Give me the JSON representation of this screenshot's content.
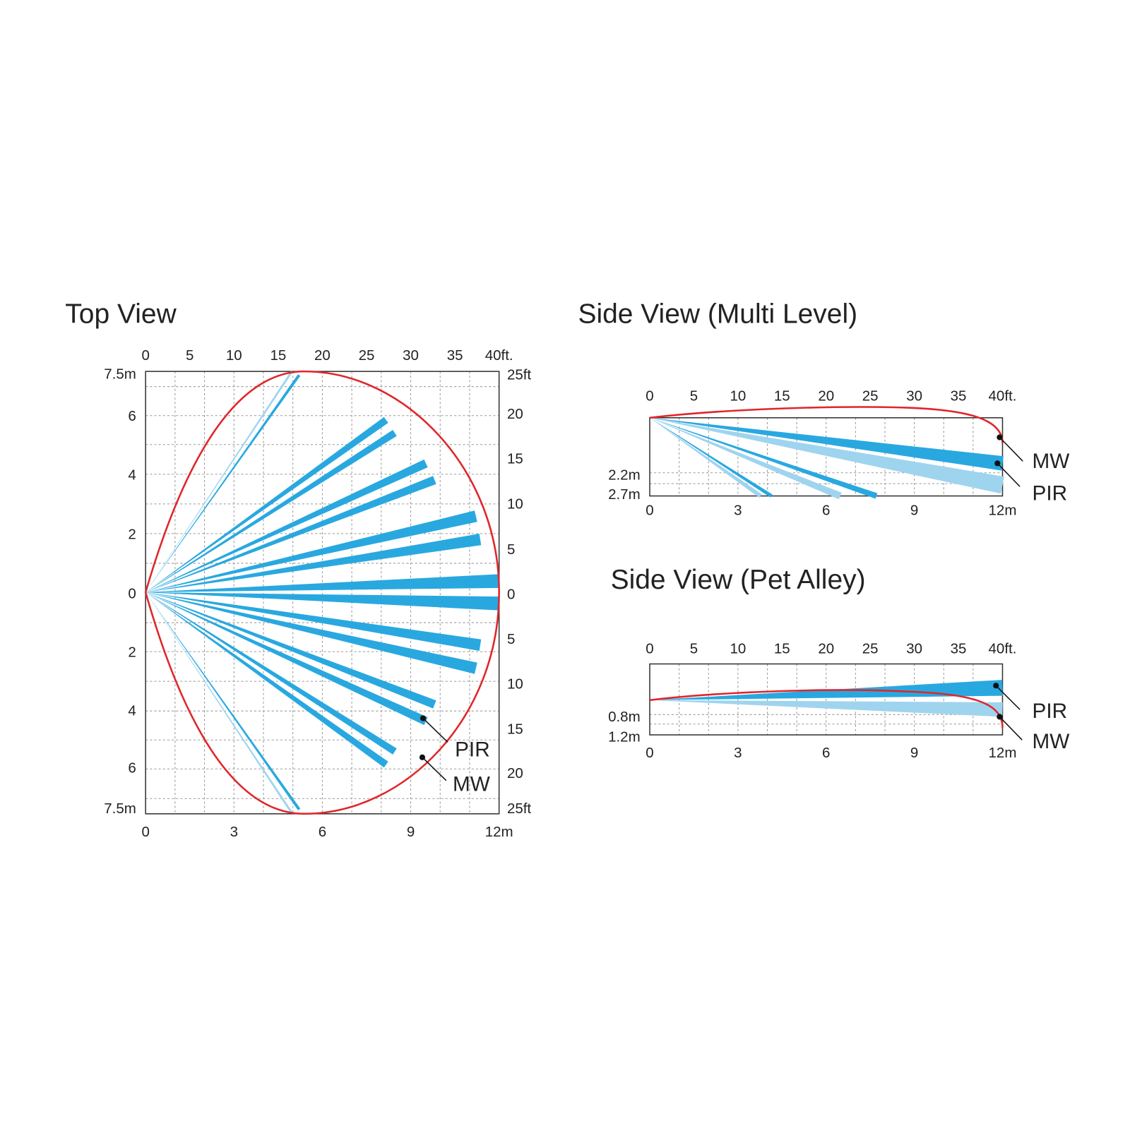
{
  "top_view": {
    "title": "Top View",
    "top_ticks": [
      "0",
      "5",
      "10",
      "15",
      "20",
      "25",
      "30",
      "35",
      "40ft."
    ],
    "bottom_ticks": [
      "0",
      "3",
      "6",
      "9",
      "12m"
    ],
    "left_ticks": [
      "7.5m",
      "6",
      "4",
      "2",
      "0",
      "2",
      "4",
      "6",
      "7.5m"
    ],
    "right_ticks": [
      "25ft",
      "20",
      "15",
      "10",
      "5",
      "0",
      "5",
      "10",
      "15",
      "20",
      "25ft"
    ],
    "labels": {
      "pir": "PIR",
      "mw": "MW"
    }
  },
  "side_multi": {
    "title": "Side View (Multi Level)",
    "top_ticks": [
      "0",
      "5",
      "10",
      "15",
      "20",
      "25",
      "30",
      "35",
      "40ft."
    ],
    "bottom_ticks": [
      "0",
      "3",
      "6",
      "9",
      "12m"
    ],
    "left_ticks": [
      "2.2m",
      "2.7m"
    ],
    "labels": {
      "mw": "MW",
      "pir": "PIR"
    }
  },
  "side_pet": {
    "title": "Side View (Pet Alley)",
    "top_ticks": [
      "0",
      "5",
      "10",
      "15",
      "20",
      "25",
      "30",
      "35",
      "40ft."
    ],
    "bottom_ticks": [
      "0",
      "3",
      "6",
      "9",
      "12m"
    ],
    "left_ticks": [
      "0.8m",
      "1.2m"
    ],
    "labels": {
      "pir": "PIR",
      "mw": "MW"
    }
  }
}
